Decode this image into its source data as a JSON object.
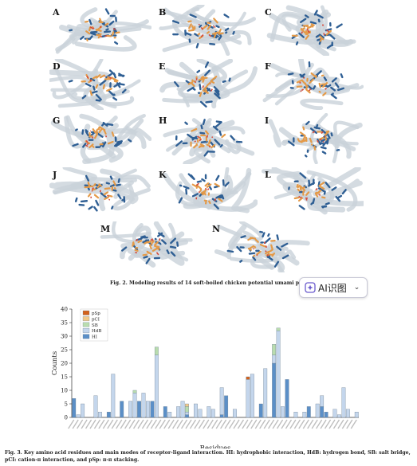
{
  "figure2": {
    "panels": [
      "A",
      "B",
      "C",
      "D",
      "E",
      "F",
      "G",
      "H",
      "I",
      "J",
      "K",
      "L",
      "M",
      "N"
    ],
    "caption": "Fig. 2.  Modeling results of 14 soft-boiled chicken potential umami peptides"
  },
  "ai_badge": {
    "label": "AI识图",
    "icon": "ai-sparkle-icon",
    "chevron": "chevron-down-icon"
  },
  "figure3": {
    "caption": "Fig. 3.  Key amino acid residues and main modes of receptor-ligand interaction. HI: hydrophobic interaction, HdB: hydrogen bond, SB: salt bridge, pCI: cation-π interaction, and pSp: π-π stacking."
  },
  "chart_data": {
    "type": "bar",
    "stacked": true,
    "ylabel": "Counts",
    "xlabel": "Residues",
    "ylim": [
      0,
      40
    ],
    "yticks": [
      0,
      5,
      10,
      15,
      20,
      25,
      30,
      35,
      40
    ],
    "legend_position": "top-left",
    "categories": [
      "c1",
      "c2",
      "c3",
      "c4",
      "c5",
      "c6",
      "c7",
      "c8",
      "c9",
      "c10",
      "c11",
      "c12",
      "c13",
      "c14",
      "c15",
      "c16",
      "c17",
      "c18",
      "c19",
      "c20",
      "c21",
      "c22",
      "c23",
      "c24",
      "c25",
      "c26",
      "c27",
      "c28",
      "c29",
      "c30",
      "c31",
      "c32",
      "c33",
      "c34",
      "c35",
      "c36",
      "c37",
      "c38",
      "c39",
      "c40",
      "c41",
      "c42",
      "c43",
      "c44",
      "c45",
      "c46",
      "c47",
      "c48",
      "c49",
      "c50",
      "c51",
      "c52",
      "c53",
      "c54",
      "c55",
      "c56",
      "c57",
      "c58",
      "c59",
      "c60",
      "c61",
      "c62",
      "c63",
      "c64",
      "c65",
      "c66"
    ],
    "tick_labels_note": "rotated residue labels are too small to read",
    "series": [
      {
        "name": "HI",
        "color": "#5b8fc7",
        "values": [
          7,
          0,
          0,
          0,
          0,
          0,
          0,
          0,
          2,
          0,
          0,
          6,
          0,
          0,
          0,
          6,
          0,
          0,
          6,
          0,
          0,
          4,
          0,
          0,
          0,
          0,
          1,
          0,
          0,
          0,
          0,
          0,
          0,
          0,
          1,
          8,
          0,
          0,
          0,
          0,
          0,
          0,
          0,
          5,
          0,
          0,
          20,
          0,
          0,
          14,
          0,
          0,
          0,
          0,
          4,
          0,
          0,
          4,
          2,
          0,
          0,
          0,
          0,
          0,
          0,
          0
        ]
      },
      {
        "name": "HdB",
        "color": "#c4d6ec",
        "values": [
          0,
          1,
          5,
          0,
          0,
          8,
          2,
          0,
          0,
          16,
          0,
          0,
          0,
          6,
          9,
          0,
          9,
          6,
          0,
          23,
          0,
          0,
          2,
          0,
          4,
          6,
          1,
          0,
          5,
          3,
          0,
          4,
          3,
          0,
          10,
          0,
          0,
          3,
          0,
          0,
          14,
          16,
          0,
          0,
          18,
          0,
          3,
          32,
          4,
          0,
          0,
          2,
          0,
          2,
          0,
          0,
          5,
          4,
          0,
          0,
          3,
          1,
          11,
          3,
          0,
          2
        ]
      },
      {
        "name": "SB",
        "color": "#b9dcae",
        "values": [
          0,
          0,
          0,
          0,
          0,
          0,
          0,
          0,
          0,
          0,
          0,
          0,
          0,
          0,
          1,
          0,
          0,
          0,
          0,
          3,
          0,
          0,
          0,
          0,
          0,
          0,
          2,
          0,
          0,
          0,
          0,
          0,
          0,
          0,
          0,
          0,
          0,
          0,
          0,
          0,
          0,
          0,
          0,
          0,
          0,
          0,
          4,
          1,
          0,
          0,
          0,
          0,
          0,
          0,
          0,
          0,
          0,
          0,
          0,
          0,
          0,
          0,
          0,
          0,
          0,
          0
        ]
      },
      {
        "name": "pCI",
        "color": "#f2c98a",
        "values": [
          0,
          0,
          0,
          0,
          0,
          0,
          0,
          0,
          0,
          0,
          0,
          0,
          0,
          0,
          0,
          0,
          0,
          0,
          0,
          0,
          0,
          0,
          0,
          0,
          0,
          0,
          1,
          0,
          0,
          0,
          0,
          0,
          0,
          0,
          0,
          0,
          0,
          0,
          0,
          0,
          0,
          0,
          0,
          0,
          0,
          0,
          0,
          0,
          0,
          0,
          0,
          0,
          0,
          0,
          0,
          0,
          0,
          0,
          0,
          0,
          0,
          0,
          0,
          0,
          0,
          0
        ]
      },
      {
        "name": "pSp",
        "color": "#d2611c",
        "values": [
          0,
          0,
          0,
          0,
          0,
          0,
          0,
          0,
          0,
          0,
          0,
          0,
          0,
          0,
          0,
          0,
          0,
          0,
          0,
          0,
          0,
          0,
          0,
          0,
          0,
          0,
          0,
          0,
          0,
          0,
          0,
          0,
          0,
          0,
          0,
          0,
          0,
          0,
          0,
          0,
          1,
          0,
          0,
          0,
          0,
          0,
          0,
          0,
          0,
          0,
          0,
          0,
          0,
          0,
          0,
          0,
          0,
          0,
          0,
          0,
          0,
          0,
          0,
          0,
          0,
          0
        ]
      }
    ]
  }
}
